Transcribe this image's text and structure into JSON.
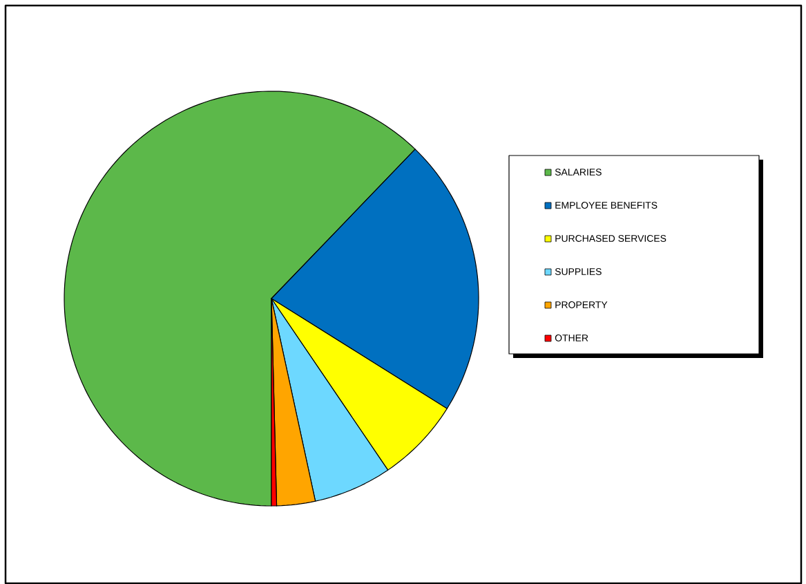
{
  "chart_data": {
    "type": "pie",
    "categories": [
      "SALARIES",
      "EMPLOYEE BENEFITS",
      "PURCHASED SERVICES",
      "SUPPLIES",
      "PROPERTY",
      "OTHER"
    ],
    "values": [
      62.2,
      21.7,
      6.6,
      6.1,
      3.0,
      0.4
    ],
    "colors": [
      "#5cb84a",
      "#0070c0",
      "#ffff00",
      "#6dd8ff",
      "#ffa500",
      "#ff0000"
    ],
    "legend": "right"
  }
}
